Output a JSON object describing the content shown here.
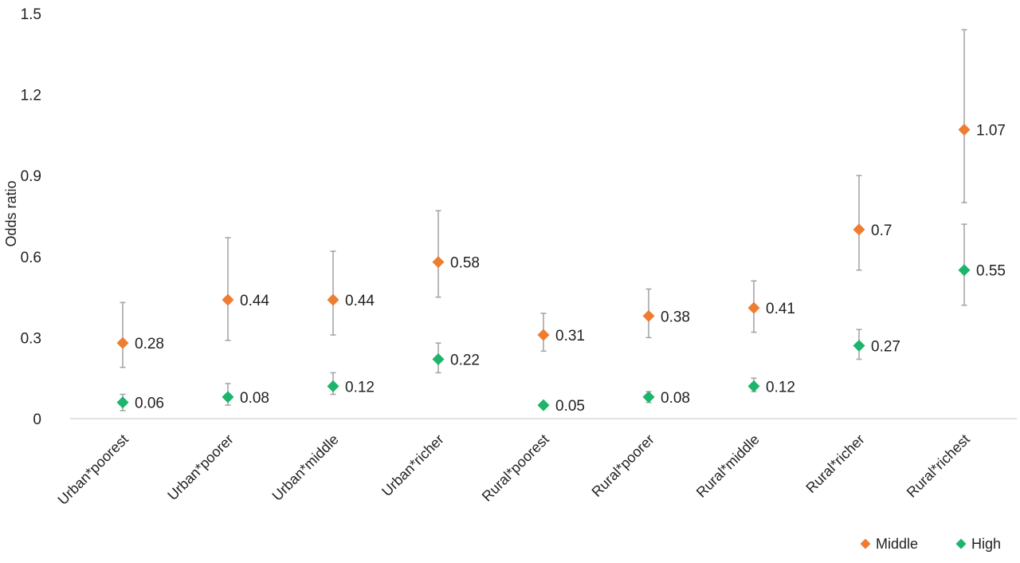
{
  "chart_data": {
    "type": "scatter",
    "ylabel": "Odds ratio",
    "xlabel": "",
    "ylim": [
      0,
      1.5
    ],
    "yticks": [
      "0",
      "0.3",
      "0.6",
      "0.9",
      "1.2",
      "1.5"
    ],
    "ytick_values": [
      0,
      0.3,
      0.6,
      0.9,
      1.2,
      1.5
    ],
    "grid": false,
    "legend_position": "bottom-right",
    "categories": [
      "Urban*poorest",
      "Urban*poorer",
      "Urban*middle",
      "Urban*richer",
      "Rural*poorest",
      "Rural*poorer",
      "Rural*middle",
      "Rural*richer",
      "Rural*richest"
    ],
    "series": [
      {
        "name": "Middle",
        "color": "#ED7D31",
        "marker": "diamond",
        "values": [
          0.28,
          0.44,
          0.44,
          0.58,
          0.31,
          0.38,
          0.41,
          0.7,
          1.07
        ],
        "labels": [
          "0.28",
          "0.44",
          "0.44",
          "0.58",
          "0.31",
          "0.38",
          "0.41",
          "0.7",
          "1.07"
        ],
        "ci_low": [
          0.19,
          0.29,
          0.31,
          0.45,
          0.25,
          0.3,
          0.32,
          0.55,
          0.8
        ],
        "ci_high": [
          0.43,
          0.67,
          0.62,
          0.77,
          0.39,
          0.48,
          0.51,
          0.9,
          1.44
        ]
      },
      {
        "name": "High",
        "color": "#1DB46B",
        "marker": "diamond",
        "values": [
          0.06,
          0.08,
          0.12,
          0.22,
          0.05,
          0.08,
          0.12,
          0.27,
          0.55
        ],
        "labels": [
          "0.06",
          "0.08",
          "0.12",
          "0.22",
          "0.05",
          "0.08",
          "0.12",
          "0.27",
          "0.55"
        ],
        "ci_low": [
          0.03,
          0.05,
          0.09,
          0.17,
          0.04,
          0.06,
          0.1,
          0.22,
          0.42
        ],
        "ci_high": [
          0.09,
          0.13,
          0.17,
          0.28,
          0.06,
          0.1,
          0.15,
          0.33,
          0.72
        ]
      }
    ],
    "errorbar_color": "#A6A6A6",
    "axis_color": "#D9D9D9"
  }
}
